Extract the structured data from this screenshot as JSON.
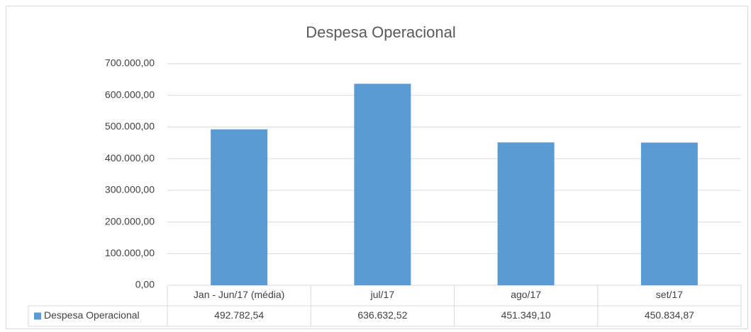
{
  "chart_data": {
    "type": "bar",
    "title": "Despesa Operacional",
    "categories": [
      "Jan - Jun/17 (média)",
      "jul/17",
      "ago/17",
      "set/17"
    ],
    "series": [
      {
        "name": "Despesa Operacional",
        "color": "#5b9bd5",
        "values": [
          492782.54,
          636632.52,
          451349.1,
          450834.87
        ],
        "value_labels": [
          "492.782,54",
          "636.632,52",
          "451.349,10",
          "450.834,87"
        ]
      }
    ],
    "ylim": [
      0,
      700000
    ],
    "yticks": [
      {
        "value": 0,
        "label": "0,00"
      },
      {
        "value": 100000,
        "label": "100.000,00"
      },
      {
        "value": 200000,
        "label": "200.000,00"
      },
      {
        "value": 300000,
        "label": "300.000,00"
      },
      {
        "value": 400000,
        "label": "400.000,00"
      },
      {
        "value": 500000,
        "label": "500.000,00"
      },
      {
        "value": 600000,
        "label": "600.000,00"
      },
      {
        "value": 700000,
        "label": "700.000,00"
      }
    ],
    "grid": true
  }
}
